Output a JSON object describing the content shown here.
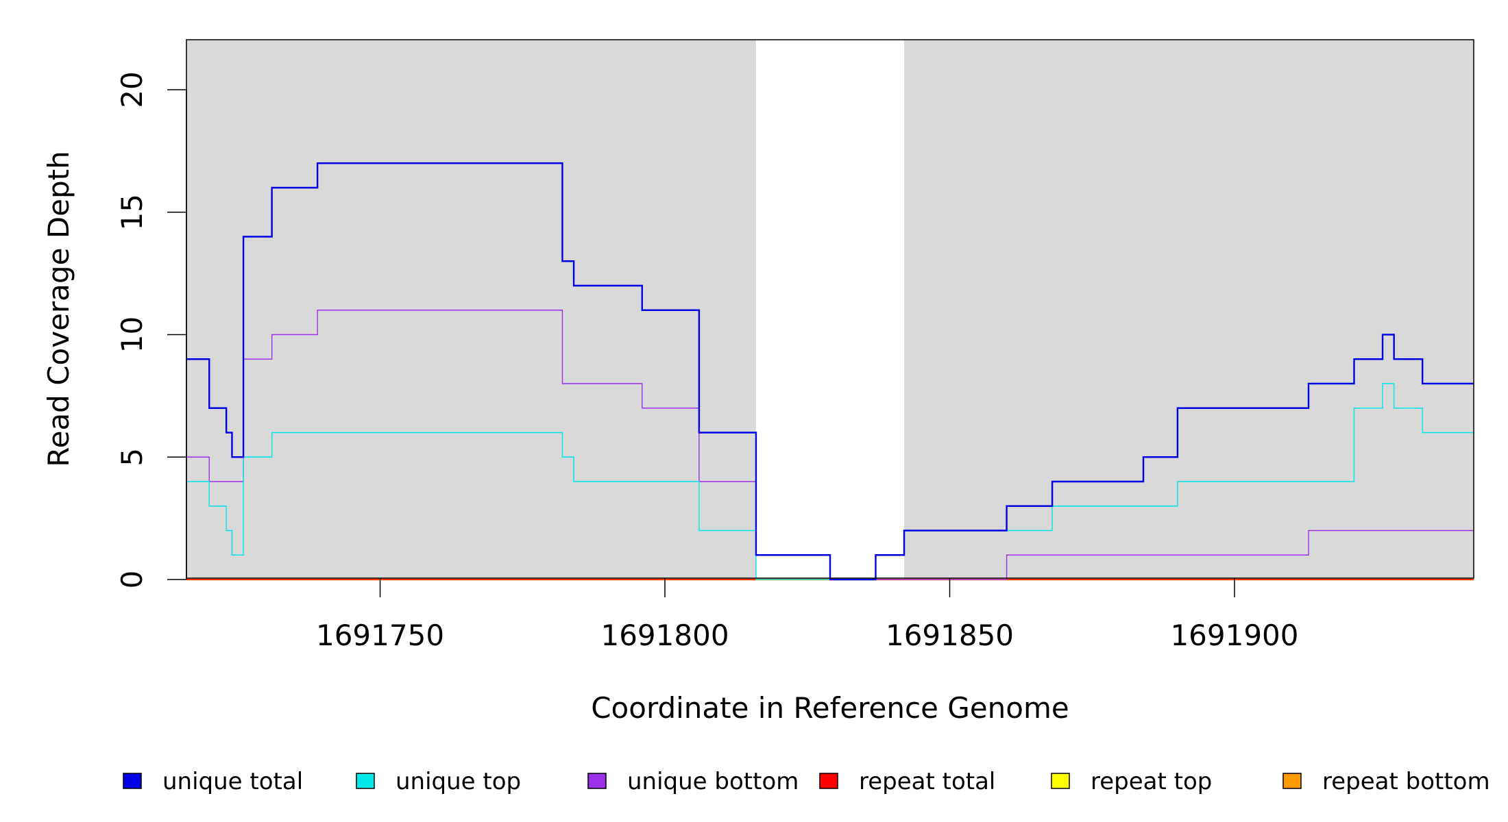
{
  "chart_data": {
    "type": "line",
    "step": "post",
    "xlabel": "Coordinate in Reference Genome",
    "ylabel": "Read Coverage Depth",
    "xlim": [
      1691716,
      1691942
    ],
    "ylim": [
      0,
      22
    ],
    "x_ticks": [
      1691750,
      1691800,
      1691850,
      1691900
    ],
    "x_tick_labels": [
      "1691750",
      "1691800",
      "1691850",
      "1691900"
    ],
    "y_ticks": [
      0,
      5,
      10,
      15,
      20
    ],
    "y_tick_labels": [
      "0",
      "5",
      "10",
      "15",
      "20"
    ],
    "background_color": "#d9d9d9",
    "shaded_regions": [
      {
        "x0": 1691716,
        "x1": 1691816
      },
      {
        "x0": 1691842,
        "x1": 1691942
      }
    ],
    "legend_position": "bottom",
    "series": [
      {
        "name": "unique total",
        "color": "#0000e6",
        "width": 2.4,
        "x": [
          1691716,
          1691720,
          1691723,
          1691724,
          1691726,
          1691731,
          1691739,
          1691782,
          1691784,
          1691796,
          1691806,
          1691816,
          1691829,
          1691837,
          1691842,
          1691860,
          1691868,
          1691884,
          1691890,
          1691913,
          1691921,
          1691926,
          1691928,
          1691933,
          1691942
        ],
        "values": [
          9,
          7,
          6,
          5,
          14,
          16,
          17,
          13,
          12,
          11,
          6,
          1,
          0,
          1,
          2,
          3,
          4,
          5,
          7,
          8,
          9,
          10,
          9,
          8,
          8
        ]
      },
      {
        "name": "unique top",
        "color": "#00e8e8",
        "width": 1.4,
        "x": [
          1691716,
          1691720,
          1691723,
          1691724,
          1691726,
          1691731,
          1691782,
          1691784,
          1691806,
          1691816,
          1691837,
          1691842,
          1691860,
          1691868,
          1691884,
          1691890,
          1691921,
          1691926,
          1691928,
          1691933,
          1691942
        ],
        "values": [
          4,
          3,
          2,
          1,
          5,
          6,
          5,
          4,
          2,
          0,
          1,
          2,
          2,
          3,
          3,
          4,
          7,
          8,
          7,
          6,
          6
        ]
      },
      {
        "name": "unique bottom",
        "color": "#9b30e8",
        "width": 1.4,
        "x": [
          1691716,
          1691720,
          1691726,
          1691731,
          1691739,
          1691782,
          1691796,
          1691806,
          1691816,
          1691829,
          1691860,
          1691913,
          1691942
        ],
        "values": [
          5,
          4,
          9,
          10,
          11,
          8,
          7,
          4,
          1,
          0,
          1,
          2,
          2
        ]
      },
      {
        "name": "repeat total",
        "color": "#ff0000",
        "width": 1.4,
        "x": [
          1691716,
          1691942
        ],
        "values": [
          0,
          0
        ]
      },
      {
        "name": "repeat top",
        "color": "#ffff00",
        "width": 1.4,
        "x": [
          1691716,
          1691942
        ],
        "values": [
          0,
          0
        ]
      },
      {
        "name": "repeat bottom",
        "color": "#ff9900",
        "width": 2.4,
        "x": [
          1691716,
          1691942
        ],
        "values": [
          0,
          0
        ]
      }
    ]
  }
}
